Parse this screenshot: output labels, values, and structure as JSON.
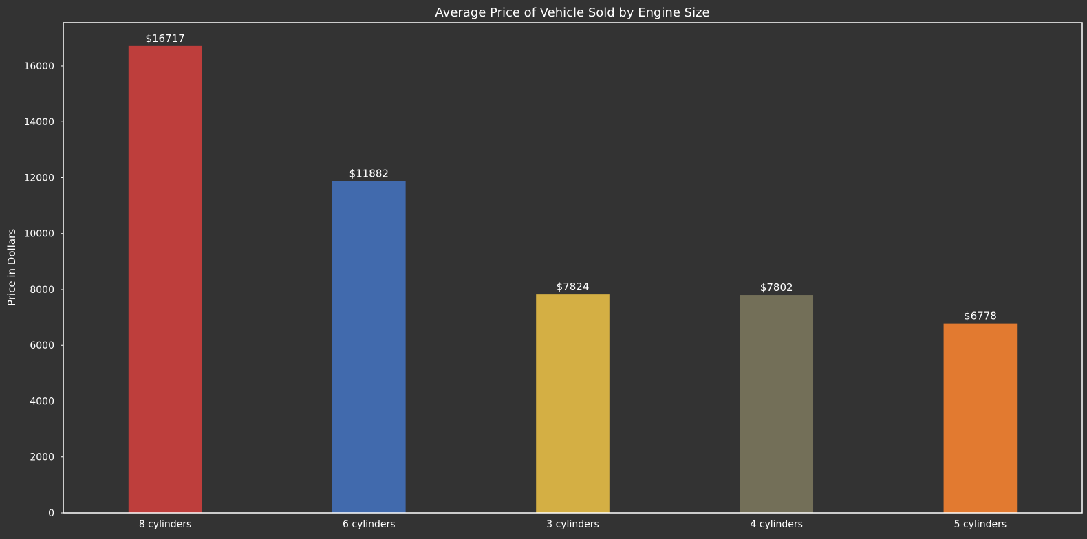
{
  "chart_data": {
    "type": "bar",
    "title": "Average Price of Vehicle Sold by Engine Size",
    "xlabel": "",
    "ylabel": "Price in Dollars",
    "categories": [
      "8 cylinders",
      "6 cylinders",
      "3 cylinders",
      "4 cylinders",
      "5 cylinders"
    ],
    "values": [
      16717,
      11882,
      7824,
      7802,
      6778
    ],
    "data_labels": [
      "$16717",
      "$11882",
      "$7824",
      "$7802",
      "$6778"
    ],
    "colors": [
      "#be3e3c",
      "#416aad",
      "#d4af44",
      "#736f58",
      "#e27a30"
    ],
    "ylim": [
      0,
      17550
    ],
    "yticks": [
      0,
      2000,
      4000,
      6000,
      8000,
      10000,
      12000,
      14000,
      16000
    ],
    "grid": false,
    "legend": false
  },
  "style": {
    "background": "#333333",
    "axes_color": "#ffffff",
    "text_color": "#ffffff"
  }
}
